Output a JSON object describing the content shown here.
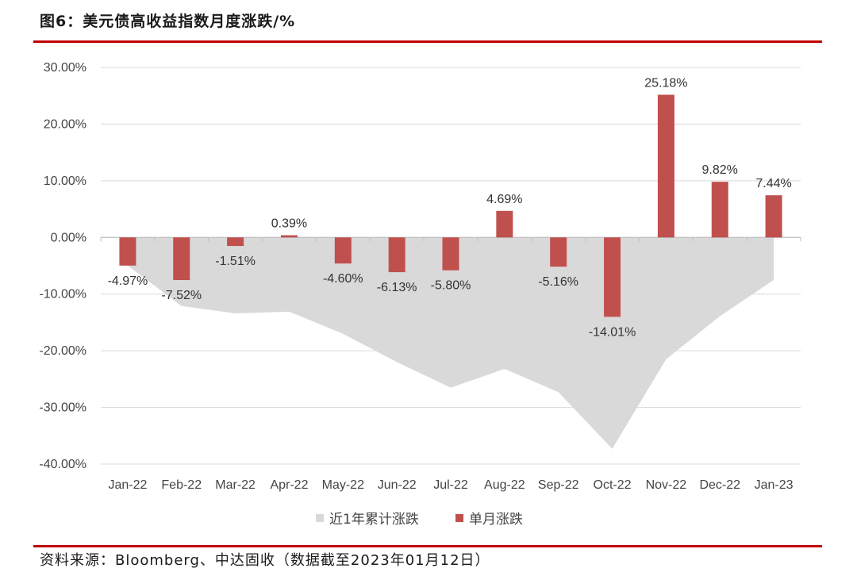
{
  "title": "图6：美元债高收益指数月度涨跌/%",
  "source": "资料来源：Bloomberg、中达固收（数据截至2023年01月12日）",
  "colors": {
    "accent": "#c00000",
    "bar": "#c0504d",
    "area": "#d9d9d9",
    "grid": "#d9d9d9"
  },
  "chart_data": {
    "type": "bar",
    "title": "图6：美元债高收益指数月度涨跌/%",
    "xlabel": "",
    "ylabel": "",
    "ylim": [
      -40,
      30
    ],
    "yticks": [
      30,
      20,
      10,
      0,
      -10,
      -20,
      -30,
      -40
    ],
    "ytick_labels": [
      "30.00%",
      "20.00%",
      "10.00%",
      "0.00%",
      "-10.00%",
      "-20.00%",
      "-30.00%",
      "-40.00%"
    ],
    "grid": true,
    "legend_position": "bottom-center",
    "categories": [
      "Jan-22",
      "Feb-22",
      "Mar-22",
      "Apr-22",
      "May-22",
      "Jun-22",
      "Jul-22",
      "Aug-22",
      "Sep-22",
      "Oct-22",
      "Nov-22",
      "Dec-22",
      "Jan-23"
    ],
    "series": [
      {
        "name": "近1年累计涨跌",
        "type": "area",
        "color": "#d9d9d9",
        "values": [
          -4.97,
          -12.1,
          -13.4,
          -13.1,
          -17.0,
          -22.0,
          -26.5,
          -23.2,
          -27.3,
          -37.3,
          -21.5,
          -13.9,
          -7.5
        ]
      },
      {
        "name": "单月涨跌",
        "type": "bar",
        "color": "#c0504d",
        "values": [
          -4.97,
          -7.52,
          -1.51,
          0.39,
          -4.6,
          -6.13,
          -5.8,
          4.69,
          -5.16,
          -14.01,
          25.18,
          9.82,
          7.44
        ],
        "labels": [
          "-4.97%",
          "-7.52%",
          "-1.51%",
          "0.39%",
          "-4.60%",
          "-6.13%",
          "-5.80%",
          "4.69%",
          "-5.16%",
          "-14.01%",
          "25.18%",
          "9.82%",
          "7.44%"
        ]
      }
    ]
  }
}
